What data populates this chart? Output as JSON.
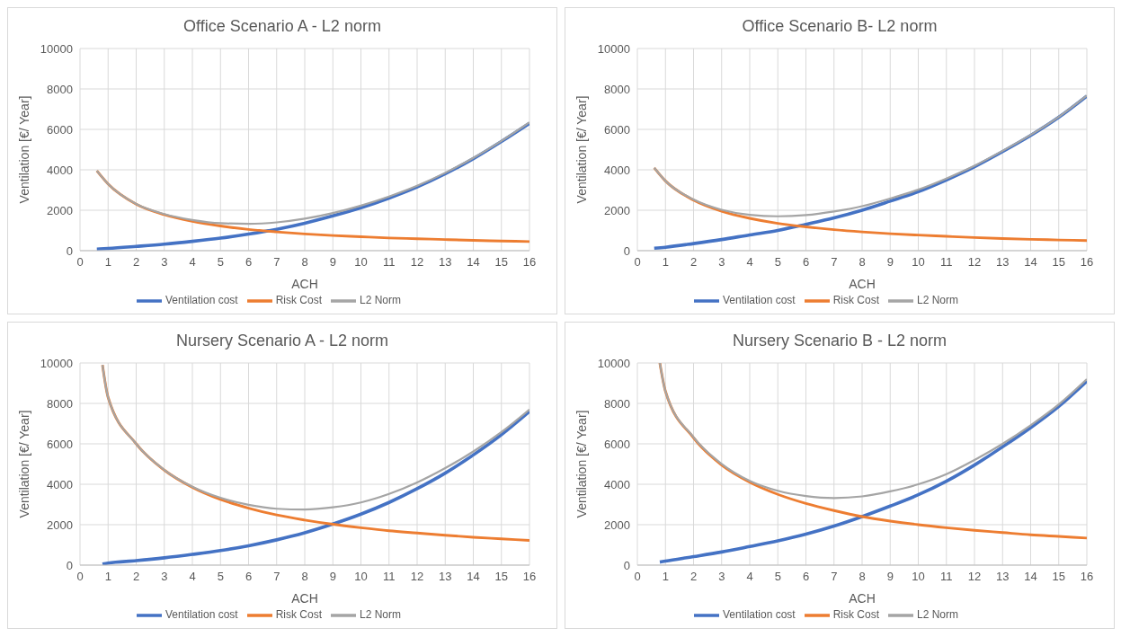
{
  "chart_data": [
    {
      "type": "line",
      "title": "Office  Scenario A - L2 norm",
      "xlabel": "ACH",
      "ylabel": "Ventilation [€/ Year]",
      "xlim": [
        0,
        16
      ],
      "xticks": [
        0,
        1,
        2,
        3,
        4,
        5,
        6,
        7,
        8,
        9,
        10,
        11,
        12,
        13,
        14,
        15,
        16
      ],
      "ylim": [
        0,
        10000
      ],
      "yticks": [
        0,
        2000,
        4000,
        6000,
        8000,
        10000
      ],
      "grid": true,
      "legend": "bottom",
      "marker": "none",
      "line_style": "solid",
      "series": [
        {
          "name": "Ventilation cost",
          "color": "#4472c4",
          "x": [
            0.6,
            1,
            2,
            3,
            4,
            5,
            6,
            7,
            8,
            9,
            10,
            11,
            12,
            13,
            14,
            15,
            16
          ],
          "values": [
            80,
            110,
            210,
            320,
            460,
            620,
            820,
            1060,
            1360,
            1720,
            2120,
            2600,
            3150,
            3800,
            4550,
            5400,
            6300
          ]
        },
        {
          "name": "Risk Cost",
          "color": "#ed7d31",
          "x": [
            0.6,
            1,
            2,
            3,
            4,
            5,
            6,
            7,
            8,
            9,
            10,
            11,
            12,
            13,
            14,
            15,
            16
          ],
          "values": [
            3950,
            3300,
            2300,
            1780,
            1450,
            1220,
            1050,
            930,
            830,
            750,
            690,
            630,
            590,
            550,
            510,
            480,
            450
          ]
        },
        {
          "name": "L2 Norm",
          "color": "#a5a5a5",
          "x": [
            0.6,
            1,
            2,
            3,
            4,
            5,
            6,
            7,
            8,
            9,
            10,
            11,
            12,
            13,
            14,
            15,
            16
          ],
          "values": [
            3950,
            3300,
            2310,
            1810,
            1520,
            1360,
            1330,
            1400,
            1580,
            1860,
            2230,
            2680,
            3210,
            3850,
            4590,
            5430,
            6350
          ]
        }
      ]
    },
    {
      "type": "line",
      "title": "Office  Scenario B- L2 norm",
      "xlabel": "ACH",
      "ylabel": "Ventilation [€/ Year]",
      "xlim": [
        0,
        16
      ],
      "xticks": [
        0,
        1,
        2,
        3,
        4,
        5,
        6,
        7,
        8,
        9,
        10,
        11,
        12,
        13,
        14,
        15,
        16
      ],
      "ylim": [
        0,
        10000
      ],
      "yticks": [
        0,
        2000,
        4000,
        6000,
        8000,
        10000
      ],
      "grid": true,
      "legend": "bottom",
      "marker": "none",
      "line_style": "solid",
      "series": [
        {
          "name": "Ventilation cost",
          "color": "#4472c4",
          "x": [
            0.6,
            1,
            2,
            3,
            4,
            5,
            6,
            7,
            8,
            9,
            10,
            11,
            12,
            13,
            14,
            15,
            16
          ],
          "values": [
            120,
            170,
            350,
            550,
            780,
            1000,
            1300,
            1620,
            2000,
            2450,
            2920,
            3500,
            4150,
            4900,
            5700,
            6600,
            7650
          ]
        },
        {
          "name": "Risk Cost",
          "color": "#ed7d31",
          "x": [
            0.6,
            1,
            2,
            3,
            4,
            5,
            6,
            7,
            8,
            9,
            10,
            11,
            12,
            13,
            14,
            15,
            16
          ],
          "values": [
            4100,
            3450,
            2500,
            1950,
            1600,
            1350,
            1180,
            1040,
            930,
            840,
            770,
            710,
            650,
            600,
            560,
            530,
            500
          ]
        },
        {
          "name": "L2 Norm",
          "color": "#a5a5a5",
          "x": [
            0.6,
            1,
            2,
            3,
            4,
            5,
            6,
            7,
            8,
            9,
            10,
            11,
            12,
            13,
            14,
            15,
            16
          ],
          "values": [
            4100,
            3450,
            2530,
            2020,
            1770,
            1700,
            1760,
            1940,
            2200,
            2580,
            3020,
            3570,
            4200,
            4940,
            5730,
            6620,
            7670
          ]
        }
      ]
    },
    {
      "type": "line",
      "title": "Nursery  Scenario A - L2 norm",
      "xlabel": "ACH",
      "ylabel": "Ventilation [€/ Year]",
      "xlim": [
        0,
        16
      ],
      "xticks": [
        0,
        1,
        2,
        3,
        4,
        5,
        6,
        7,
        8,
        9,
        10,
        11,
        12,
        13,
        14,
        15,
        16
      ],
      "ylim": [
        0,
        10000
      ],
      "yticks": [
        0,
        2000,
        4000,
        6000,
        8000,
        10000
      ],
      "grid": true,
      "legend": "bottom",
      "marker": "none",
      "line_style": "solid",
      "series": [
        {
          "name": "Ventilation cost",
          "color": "#4472c4",
          "x": [
            0.8,
            1,
            2,
            3,
            4,
            5,
            6,
            7,
            8,
            9,
            10,
            11,
            12,
            13,
            14,
            15,
            16
          ],
          "values": [
            50,
            100,
            220,
            360,
            530,
            720,
            960,
            1250,
            1600,
            2030,
            2520,
            3100,
            3780,
            4550,
            5450,
            6450,
            7600
          ]
        },
        {
          "name": "Risk Cost",
          "color": "#ed7d31",
          "x": [
            0.8,
            1,
            2,
            3,
            4,
            5,
            6,
            7,
            8,
            9,
            10,
            11,
            12,
            13,
            14,
            15,
            16
          ],
          "values": [
            9900,
            8300,
            6000,
            4700,
            3850,
            3250,
            2820,
            2480,
            2230,
            2020,
            1850,
            1700,
            1590,
            1480,
            1380,
            1300,
            1220
          ]
        },
        {
          "name": "L2 Norm",
          "color": "#a5a5a5",
          "x": [
            0.8,
            1,
            2,
            3,
            4,
            5,
            6,
            7,
            8,
            9,
            10,
            11,
            12,
            13,
            14,
            15,
            16
          ],
          "values": [
            9900,
            8300,
            6000,
            4710,
            3880,
            3330,
            2980,
            2790,
            2750,
            2860,
            3100,
            3520,
            4090,
            4800,
            5620,
            6580,
            7700
          ]
        }
      ]
    },
    {
      "type": "line",
      "title": "Nursery  Scenario B - L2 norm",
      "xlabel": "ACH",
      "ylabel": "Ventilation [€/ Year]",
      "xlim": [
        0,
        16
      ],
      "xticks": [
        0,
        1,
        2,
        3,
        4,
        5,
        6,
        7,
        8,
        9,
        10,
        11,
        12,
        13,
        14,
        15,
        16
      ],
      "ylim": [
        0,
        10000
      ],
      "yticks": [
        0,
        2000,
        4000,
        6000,
        8000,
        10000
      ],
      "grid": true,
      "legend": "bottom",
      "marker": "none",
      "line_style": "solid",
      "series": [
        {
          "name": "Ventilation cost",
          "color": "#4472c4",
          "x": [
            0.8,
            1,
            2,
            3,
            4,
            5,
            6,
            7,
            8,
            9,
            10,
            11,
            12,
            13,
            14,
            15,
            16
          ],
          "values": [
            150,
            200,
            420,
            650,
            920,
            1200,
            1530,
            1930,
            2400,
            2920,
            3480,
            4150,
            4950,
            5850,
            6800,
            7850,
            9100
          ]
        },
        {
          "name": "Risk Cost",
          "color": "#ed7d31",
          "x": [
            0.8,
            1,
            2,
            3,
            4,
            5,
            6,
            7,
            8,
            9,
            10,
            11,
            12,
            13,
            14,
            15,
            16
          ],
          "values": [
            10000,
            8600,
            6300,
            4950,
            4100,
            3500,
            3050,
            2700,
            2400,
            2180,
            2000,
            1850,
            1720,
            1610,
            1500,
            1420,
            1340
          ]
        },
        {
          "name": "L2 Norm",
          "color": "#a5a5a5",
          "x": [
            0.8,
            1,
            2,
            3,
            4,
            5,
            6,
            7,
            8,
            9,
            10,
            11,
            12,
            13,
            14,
            15,
            16
          ],
          "values": [
            10000,
            8600,
            6330,
            5010,
            4170,
            3680,
            3420,
            3320,
            3400,
            3650,
            4000,
            4500,
            5200,
            6000,
            6920,
            7950,
            9200
          ]
        }
      ]
    }
  ]
}
